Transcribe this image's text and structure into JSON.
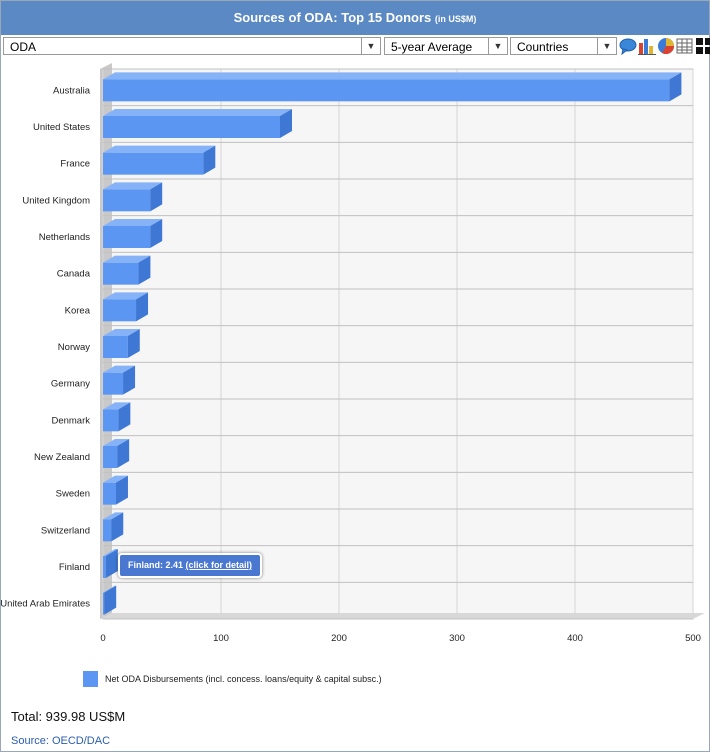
{
  "header": {
    "title": "Sources of ODA: Top 15 Donors",
    "unit": "(in US$M)"
  },
  "toolbar": {
    "measure": "ODA",
    "period": "5-year Average",
    "grouping": "Countries",
    "view_icons": [
      "comment-icon",
      "bar-chart-icon",
      "pie-chart-icon",
      "table-icon",
      "grid-view-icon"
    ]
  },
  "chart_data": {
    "type": "bar",
    "orientation": "horizontal",
    "categories": [
      "Australia",
      "United States",
      "France",
      "United Kingdom",
      "Netherlands",
      "Canada",
      "Korea",
      "Norway",
      "Germany",
      "Denmark",
      "New Zealand",
      "Sweden",
      "Switzerland",
      "Finland",
      "United Arab Emirates"
    ],
    "series": [
      {
        "name": "Net ODA Disbursements (incl. concess. loans/equity & capital subsc.)",
        "values": [
          480,
          150,
          85,
          40,
          40,
          30,
          28,
          21,
          17,
          13,
          12,
          11,
          7,
          2.41,
          1
        ]
      }
    ],
    "xlim": [
      0,
      500
    ],
    "xticks": [
      0,
      100,
      200,
      300,
      400,
      500
    ],
    "grid": true,
    "bar_color": "#5b96f2",
    "legend_position": "bottom"
  },
  "tooltip": {
    "text": "Finland: 2.41",
    "link": "(click for detail)"
  },
  "footer": {
    "total": "Total: 939.98 US$M",
    "source": "Source: OECD/DAC"
  }
}
